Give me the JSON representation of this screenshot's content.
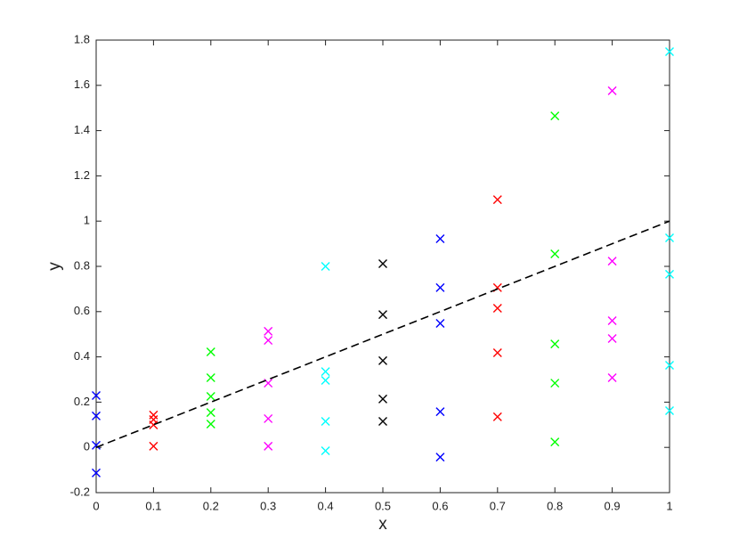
{
  "chart_data": {
    "type": "scatter",
    "x_label": "x",
    "y_label": "y",
    "xlim": [
      0,
      1
    ],
    "ylim": [
      -0.2,
      1.8
    ],
    "xticks": [
      0,
      0.1,
      0.2,
      0.3,
      0.4,
      0.5,
      0.6,
      0.7,
      0.8,
      0.9,
      1
    ],
    "yticks": [
      -0.2,
      0,
      0.2,
      0.4,
      0.6,
      0.8,
      1,
      1.2,
      1.4,
      1.6,
      1.8
    ],
    "grid": false,
    "box": true,
    "marker": "x",
    "series": [
      {
        "color": "#0000ff",
        "x": [
          0,
          0,
          0,
          0
        ],
        "values": [
          0.229,
          0.139,
          0.009,
          -0.113
        ]
      },
      {
        "color": "#ff0000",
        "x": [
          0.1,
          0.1,
          0.1,
          0.1
        ],
        "values": [
          0.143,
          0.123,
          0.099,
          0.005
        ]
      },
      {
        "color": "#00ff00",
        "x": [
          0.2,
          0.2,
          0.2,
          0.2,
          0.2
        ],
        "values": [
          0.422,
          0.308,
          0.225,
          0.154,
          0.103
        ]
      },
      {
        "color": "#ff00ff",
        "x": [
          0.3,
          0.3,
          0.3,
          0.3,
          0.3
        ],
        "values": [
          0.513,
          0.473,
          0.284,
          0.127,
          0.005
        ]
      },
      {
        "color": "#00ffff",
        "x": [
          0.4,
          0.4,
          0.4,
          0.4,
          0.4
        ],
        "values": [
          0.8,
          0.335,
          0.296,
          0.115,
          -0.015
        ]
      },
      {
        "color": "#000000",
        "x": [
          0.5,
          0.5,
          0.5,
          0.5,
          0.5
        ],
        "values": [
          0.812,
          0.587,
          0.383,
          0.214,
          0.115
        ]
      },
      {
        "color": "#0000ff",
        "x": [
          0.6,
          0.6,
          0.6,
          0.6,
          0.6
        ],
        "values": [
          0.922,
          0.706,
          0.548,
          0.158,
          -0.043
        ]
      },
      {
        "color": "#ff0000",
        "x": [
          0.7,
          0.7,
          0.7,
          0.7,
          0.7
        ],
        "values": [
          1.095,
          0.706,
          0.615,
          0.418,
          0.135
        ]
      },
      {
        "color": "#00ff00",
        "x": [
          0.8,
          0.8,
          0.8,
          0.8,
          0.8
        ],
        "values": [
          1.465,
          0.855,
          0.457,
          0.284,
          0.024
        ]
      },
      {
        "color": "#ff00ff",
        "x": [
          0.9,
          0.9,
          0.9,
          0.9,
          0.9
        ],
        "values": [
          1.576,
          0.823,
          0.56,
          0.481,
          0.308
        ]
      },
      {
        "color": "#00ffff",
        "x": [
          1,
          1,
          1,
          1,
          1
        ],
        "values": [
          1.749,
          0.926,
          0.765,
          0.363,
          0.162
        ]
      },
      {
        "color": "#000000",
        "kind": "line",
        "style": "dashed",
        "x": [
          0,
          1
        ],
        "values": [
          0,
          1
        ]
      }
    ]
  }
}
